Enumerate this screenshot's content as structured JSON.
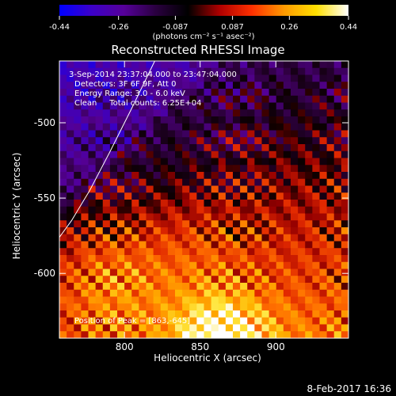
{
  "chart_data": {
    "type": "heatmap",
    "title": "Reconstructed RHESSI Image",
    "xlabel": "Heliocentric X (arcsec)",
    "ylabel": "Heliocentric Y (arcsec)",
    "xlim": [
      757,
      948
    ],
    "ylim": [
      -643,
      -459
    ],
    "x_ticks": [
      800,
      850,
      900
    ],
    "y_ticks": [
      -500,
      -550,
      -600
    ],
    "colorbar": {
      "min": -0.44,
      "max": 0.44,
      "tick_values": [
        -0.44,
        -0.26,
        -0.087,
        0.087,
        0.26,
        0.44
      ],
      "tick_labels": [
        "-0.44",
        "-0.26",
        "-0.087",
        "0.087",
        "0.26",
        "0.44"
      ],
      "unit_label": "(photons cm⁻² s⁻¹ asec⁻²)",
      "palette": [
        "#0000ff",
        "#3c00c8",
        "#56009a",
        "#2a0040",
        "#000000",
        "#b00000",
        "#ff3000",
        "#ff9a00",
        "#ffe000",
        "#ffffff"
      ]
    },
    "annotations": [
      "3-Sep-2014 23:37:04.000 to 23:47:04.000",
      "Detectors: 3F 6F 9F, Att 0",
      "Energy Range: 3.0 - 6.0 keV",
      "Clean     Total counts: 6.25E+04"
    ],
    "peak_label": "Position of Peak = [863,-645]",
    "peak": [
      863,
      -645
    ],
    "limb_arc": [
      [
        820,
        -459
      ],
      [
        805,
        -490
      ],
      [
        790,
        -520
      ],
      [
        777,
        -545
      ],
      [
        765,
        -565
      ],
      [
        757,
        -576
      ]
    ]
  },
  "footer": {
    "timestamp": "8-Feb-2017 16:36"
  }
}
